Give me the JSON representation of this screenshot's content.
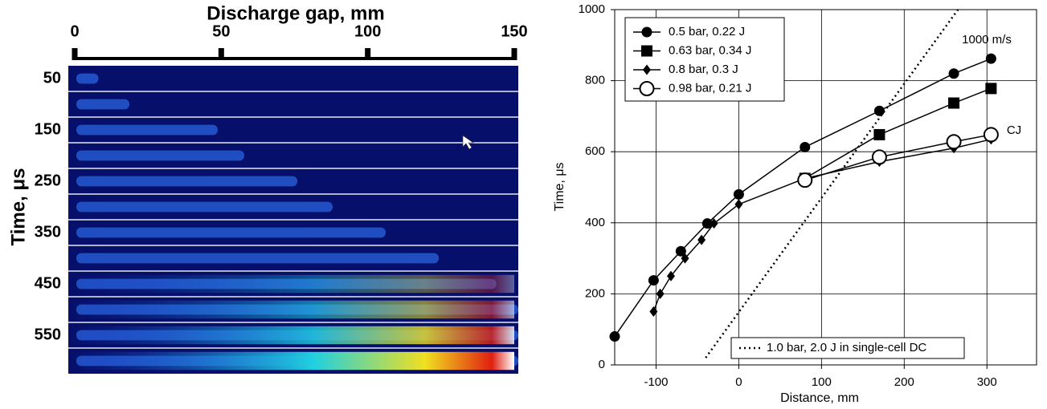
{
  "chart_data": [
    {
      "type": "image",
      "title": "Discharge gap, mm",
      "y_label": "Time, μs",
      "xlim": [
        0,
        150
      ],
      "xticks": [
        0,
        50,
        100,
        150
      ],
      "ylim": [
        625,
        25
      ],
      "yticks": [
        50,
        150,
        250,
        350,
        450,
        550
      ]
    },
    {
      "type": "line",
      "x_label": "Distance, mm",
      "y_label": "Time, μs",
      "xlim": [
        -150,
        360
      ],
      "xticks": [
        -100,
        0,
        100,
        200,
        300
      ],
      "ylim": [
        0,
        1000
      ],
      "yticks": [
        0,
        200,
        400,
        600,
        800,
        1000
      ],
      "grid": true,
      "series": [
        {
          "name": "0.5 bar, 0.22 J",
          "color": "#000000",
          "marker": "circle",
          "linestyle": "solid",
          "legend": "upper left",
          "x": [
            -150,
            -103,
            -70,
            -38,
            0,
            80,
            170,
            260,
            305
          ],
          "values": [
            80,
            238,
            320,
            398,
            480,
            613,
            715,
            820,
            862
          ]
        },
        {
          "name": "0.63 bar, 0.34 J",
          "color": "#000000",
          "marker": "square",
          "linestyle": "solid",
          "legend": "upper left",
          "x": [
            80,
            170,
            260,
            305
          ],
          "values": [
            525,
            648,
            737,
            778
          ]
        },
        {
          "name": "0.8 bar, 0.3 J",
          "color": "#000000",
          "marker": "diamond",
          "linestyle": "solid",
          "legend": "upper left",
          "x": [
            -103,
            -95,
            -82,
            -65,
            -45,
            -30,
            0,
            80,
            170,
            260,
            305
          ],
          "values": [
            150,
            200,
            250,
            300,
            352,
            398,
            452,
            525,
            572,
            610,
            635
          ]
        },
        {
          "name": "0.98 bar, 0.21 J",
          "color": "#000000",
          "marker": "open-circle",
          "linestyle": "solid",
          "legend": "upper left",
          "x": [
            80,
            170,
            260,
            305
          ],
          "values": [
            520,
            585,
            628,
            648
          ]
        },
        {
          "name": "1.0 bar, 2.0 J in single-cell DC",
          "color": "#000000",
          "marker": "none",
          "linestyle": "dotted",
          "legend": "lower right",
          "x": [
            -40,
            265
          ],
          "values": [
            20,
            1000
          ]
        }
      ],
      "annotations": [
        "1000 m/s",
        "CJ"
      ]
    }
  ]
}
